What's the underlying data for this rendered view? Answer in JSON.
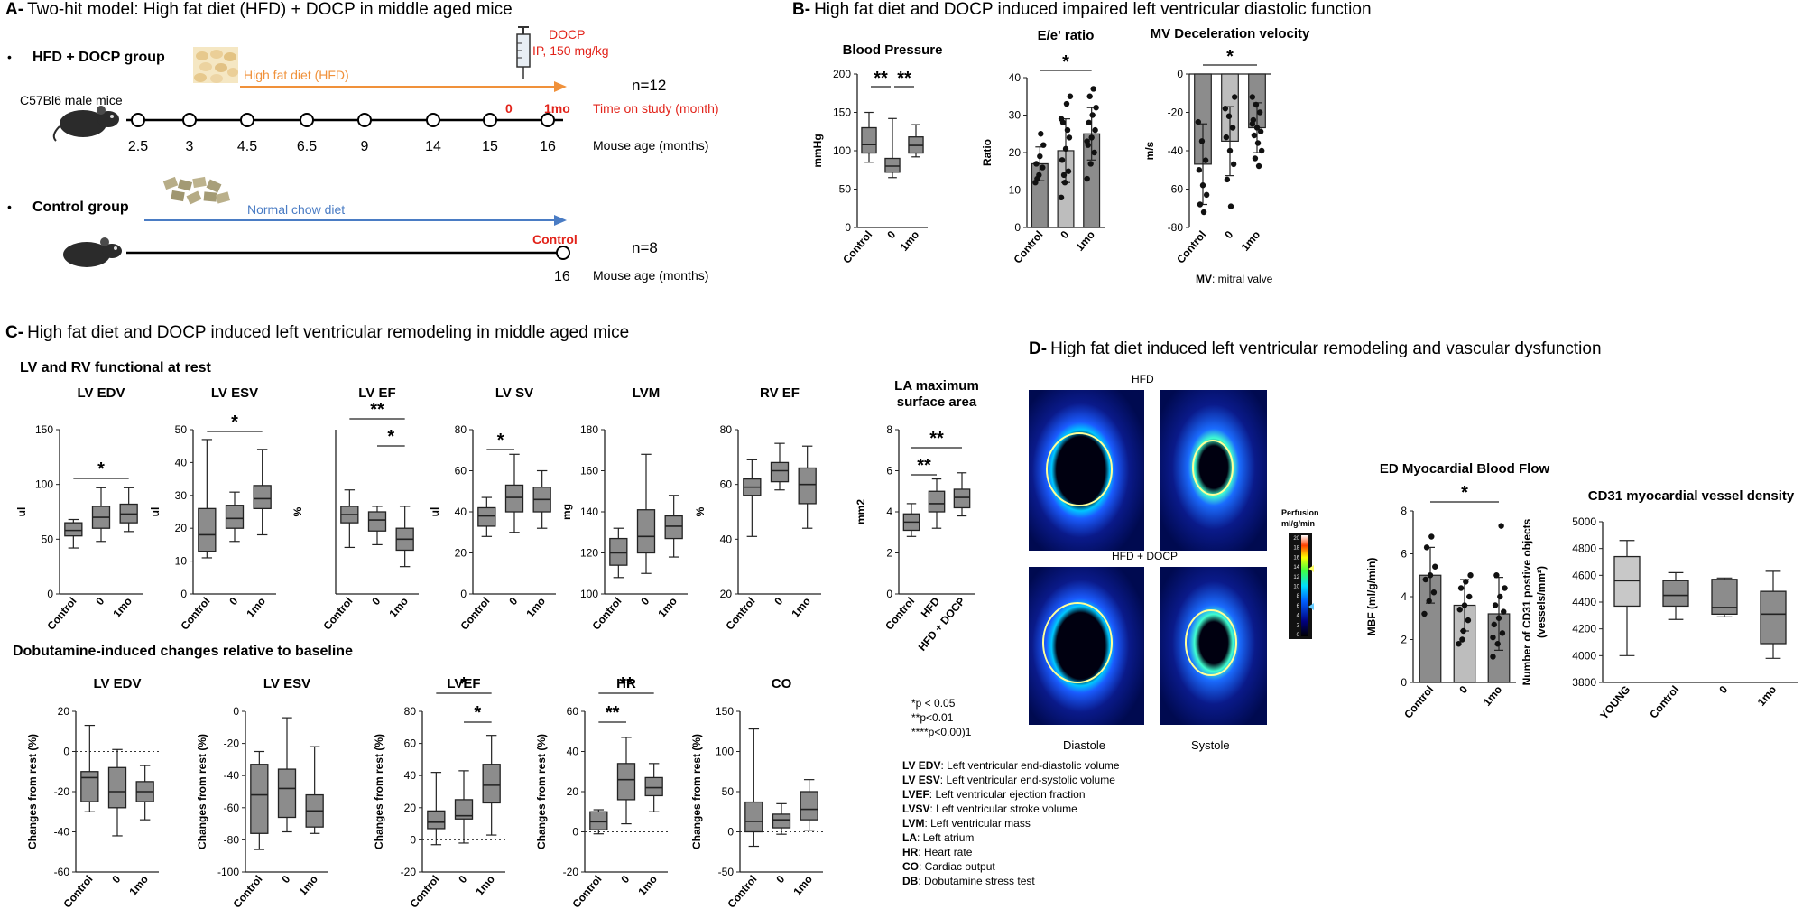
{
  "panel_a": {
    "title_letter": "A-",
    "title": "Two-hit model: High fat diet (HFD) + DOCP in middle aged mice",
    "hfd_group": {
      "bullet": "•",
      "label": "HFD + DOCP group",
      "mouse_label": "C57Bl6 male mice",
      "diet_label": "High fat diet (HFD)",
      "docp_label": "DOCP",
      "docp_dose": "IP, 150 mg/kg",
      "ages": [
        "2.5",
        "3",
        "4.5",
        "6.5",
        "9",
        "14",
        "15",
        "16"
      ],
      "study_marks": [
        "0",
        "1mo"
      ],
      "n_label": "n=12",
      "time_label": "Time on study (month)",
      "age_label": "Mouse age (months)",
      "diet_color": "#f0913a",
      "red": "#e2231a"
    },
    "control_group": {
      "bullet": "•",
      "label": "Control group",
      "diet_label": "Normal chow diet",
      "control_mark": "Control",
      "age": "16",
      "n_label": "n=8",
      "age_label": "Mouse age (months)",
      "diet_color": "#4a7cc4"
    }
  },
  "panel_b": {
    "title_letter": "B-",
    "title": "High fat diet and DOCP induced impaired left ventricular diastolic function",
    "footnote_bold": "MV",
    "footnote_rest": ": mitral valve",
    "categories": [
      "Control",
      "0",
      "1mo"
    ],
    "charts": [
      {
        "title": "Blood Pressure",
        "ylabel": "mmHg",
        "type": "box",
        "ylim": [
          0,
          200
        ],
        "yticks": [
          "0",
          "50",
          "100",
          "150",
          "200"
        ],
        "boxes": [
          {
            "min": 85,
            "q1": 97,
            "median": 108,
            "q3": 130,
            "max": 150
          },
          {
            "min": 65,
            "q1": 72,
            "median": 80,
            "q3": 90,
            "max": 142
          },
          {
            "min": 92,
            "q1": 97,
            "median": 107,
            "q3": 118,
            "max": 134
          }
        ],
        "sig": [
          {
            "from": 0,
            "to": 1,
            "label": "**"
          },
          {
            "from": 1,
            "to": 2,
            "label": "**"
          }
        ]
      },
      {
        "title": "E/e' ratio",
        "ylabel": "Ratio",
        "type": "bar",
        "ylim": [
          0,
          40
        ],
        "yticks": [
          "0",
          "10",
          "20",
          "30",
          "40"
        ],
        "bars": [
          {
            "mean": 17,
            "sd": 4.5,
            "points": [
              12,
              14,
              16,
              17,
              19,
              22,
              13,
              25
            ]
          },
          {
            "mean": 20.5,
            "sd": 8.5,
            "points": [
              8,
              12,
              15,
              18,
              21,
              24,
              28,
              33,
              35,
              14,
              26,
              29
            ]
          },
          {
            "mean": 25,
            "sd": 7,
            "points": [
              13,
              17,
              20,
              22,
              24,
              26,
              28,
              30,
              32,
              35,
              37,
              23
            ]
          }
        ],
        "sig": [
          {
            "from": 0,
            "to": 2,
            "label": "*"
          }
        ]
      },
      {
        "title": "MV Deceleration velocity",
        "ylabel": "m/s",
        "type": "bar",
        "ylim": [
          -80,
          0
        ],
        "yticks": [
          "-80",
          "-60",
          "-40",
          "-20",
          "0"
        ],
        "bars": [
          {
            "mean": -47,
            "sd": 21,
            "points": [
              -25,
              -35,
              -45,
              -50,
              -58,
              -63,
              -68,
              -72
            ]
          },
          {
            "mean": -35,
            "sd": 18,
            "points": [
              -18,
              -22,
              -28,
              -33,
              -40,
              -47,
              -55,
              -69,
              -12
            ]
          },
          {
            "mean": -28,
            "sd": 13,
            "points": [
              -12,
              -16,
              -20,
              -24,
              -28,
              -30,
              -32,
              -36,
              -40,
              -44,
              -48,
              -26
            ]
          }
        ],
        "sig": [
          {
            "from": 0,
            "to": 2,
            "label": "*"
          }
        ]
      }
    ]
  },
  "panel_c": {
    "title_letter": "C-",
    "title": "High fat diet and DOCP induced left ventricular remodeling in middle aged mice",
    "rest_title": "LV and RV functional at rest",
    "dob_title": "Dobutamine-induced changes relative to baseline",
    "categories": [
      "Control",
      "0",
      "1mo"
    ],
    "rest_charts": [
      {
        "title": "LV EDV",
        "ylabel": "ul",
        "ylim": [
          0,
          150
        ],
        "yticks": [
          "0",
          "50",
          "100",
          "150"
        ],
        "boxes": [
          {
            "min": 42,
            "q1": 53,
            "median": 58,
            "q3": 65,
            "max": 68
          },
          {
            "min": 48,
            "q1": 60,
            "median": 70,
            "q3": 80,
            "max": 97
          },
          {
            "min": 57,
            "q1": 65,
            "median": 73,
            "q3": 82,
            "max": 97
          }
        ],
        "sig": [
          {
            "from": 0,
            "to": 2,
            "label": "*"
          }
        ]
      },
      {
        "title": "LV ESV",
        "ylabel": "ul",
        "ylim": [
          0,
          50
        ],
        "yticks": [
          "0",
          "10",
          "20",
          "30",
          "40",
          "50"
        ],
        "boxes": [
          {
            "min": 11,
            "q1": 13,
            "median": 18,
            "q3": 26,
            "max": 47
          },
          {
            "min": 16,
            "q1": 20,
            "median": 23,
            "q3": 27,
            "max": 31
          },
          {
            "min": 18,
            "q1": 26,
            "median": 29,
            "q3": 33,
            "max": 44
          }
        ],
        "sig": [
          {
            "from": 0,
            "to": 2,
            "label": "*"
          }
        ]
      },
      {
        "title": "LV EF",
        "ylabel": "%",
        "ylim": [
          40,
          100
        ],
        "yticks": [],
        "boxes": [
          {
            "min": 57,
            "q1": 66,
            "median": 69,
            "q3": 72,
            "max": 78
          },
          {
            "min": 58,
            "q1": 63,
            "median": 67,
            "q3": 70,
            "max": 72
          },
          {
            "min": 50,
            "q1": 56,
            "median": 60,
            "q3": 64,
            "max": 72
          }
        ],
        "sig": [
          {
            "from": 0,
            "to": 2,
            "label": "**"
          },
          {
            "from": 1,
            "to": 2,
            "label": "*"
          }
        ]
      },
      {
        "title": "LV SV",
        "ylabel": "ul",
        "ylim": [
          0,
          80
        ],
        "yticks": [
          "0",
          "20",
          "40",
          "60",
          "80"
        ],
        "boxes": [
          {
            "min": 28,
            "q1": 33,
            "median": 38,
            "q3": 42,
            "max": 47
          },
          {
            "min": 30,
            "q1": 40,
            "median": 47,
            "q3": 53,
            "max": 68
          },
          {
            "min": 32,
            "q1": 40,
            "median": 46,
            "q3": 52,
            "max": 60
          }
        ],
        "sig": [
          {
            "from": 0,
            "to": 1,
            "label": "*"
          }
        ]
      },
      {
        "title": "LVM",
        "ylabel": "mg",
        "ylim": [
          100,
          180
        ],
        "yticks": [
          "100",
          "120",
          "140",
          "160",
          "180"
        ],
        "boxes": [
          {
            "min": 108,
            "q1": 114,
            "median": 120,
            "q3": 127,
            "max": 132
          },
          {
            "min": 110,
            "q1": 120,
            "median": 128,
            "q3": 141,
            "max": 168
          },
          {
            "min": 118,
            "q1": 127,
            "median": 133,
            "q3": 138,
            "max": 148
          }
        ],
        "sig": []
      },
      {
        "title": "RV EF",
        "ylabel": "%",
        "ylim": [
          20,
          80
        ],
        "yticks": [
          "20",
          "40",
          "60",
          "80"
        ],
        "boxes": [
          {
            "min": 41,
            "q1": 56,
            "median": 59,
            "q3": 62,
            "max": 69
          },
          {
            "min": 58,
            "q1": 61,
            "median": 65,
            "q3": 68,
            "max": 75
          },
          {
            "min": 44,
            "q1": 53,
            "median": 60,
            "q3": 66,
            "max": 74
          }
        ],
        "sig": []
      },
      {
        "title_line1": "LA maximum",
        "title_line2": "surface area",
        "ylabel": "mm2",
        "ylim": [
          0,
          8
        ],
        "yticks": [
          "0",
          "2",
          "4",
          "6",
          "8"
        ],
        "categories": [
          "Control",
          "HFD",
          "HFD + DOCP"
        ],
        "boxes": [
          {
            "min": 2.8,
            "q1": 3.1,
            "median": 3.5,
            "q3": 3.9,
            "max": 4.4
          },
          {
            "min": 3.2,
            "q1": 4.0,
            "median": 4.4,
            "q3": 5.0,
            "max": 5.6
          },
          {
            "min": 3.8,
            "q1": 4.2,
            "median": 4.7,
            "q3": 5.1,
            "max": 5.9
          }
        ],
        "sig": [
          {
            "from": 0,
            "to": 1,
            "label": "**"
          },
          {
            "from": 0,
            "to": 2,
            "label": "**"
          }
        ]
      }
    ],
    "dob_ylabel": "Changes from rest (%)",
    "dob_charts": [
      {
        "title": "LV EDV",
        "ylim": [
          -60,
          20
        ],
        "yticks": [
          "-60",
          "-40",
          "-20",
          "0",
          "20"
        ],
        "boxes": [
          {
            "min": -30,
            "q1": -25,
            "median": -13,
            "q3": -10,
            "max": 13
          },
          {
            "min": -42,
            "q1": -28,
            "median": -20,
            "q3": -8,
            "max": 1
          },
          {
            "min": -34,
            "q1": -25,
            "median": -20,
            "q3": -15,
            "max": -7
          }
        ],
        "sig": []
      },
      {
        "title": "LV ESV",
        "ylim": [
          -100,
          0
        ],
        "yticks": [
          "-100",
          "-80",
          "-60",
          "-40",
          "-20",
          "0"
        ],
        "boxes": [
          {
            "min": -86,
            "q1": -76,
            "median": -52,
            "q3": -33,
            "max": -25
          },
          {
            "min": -75,
            "q1": -66,
            "median": -48,
            "q3": -36,
            "max": -4
          },
          {
            "min": -76,
            "q1": -72,
            "median": -62,
            "q3": -52,
            "max": -22
          }
        ],
        "sig": []
      },
      {
        "title": "LVEF",
        "ylim": [
          -20,
          80
        ],
        "yticks": [
          "-20",
          "0",
          "20",
          "40",
          "60",
          "80"
        ],
        "boxes": [
          {
            "min": -3,
            "q1": 7,
            "median": 11,
            "q3": 18,
            "max": 42
          },
          {
            "min": -2,
            "q1": 13,
            "median": 15,
            "q3": 25,
            "max": 43
          },
          {
            "min": 3,
            "q1": 23,
            "median": 34,
            "q3": 47,
            "max": 65
          }
        ],
        "sig": [
          {
            "from": 0,
            "to": 2,
            "label": "*"
          },
          {
            "from": 1,
            "to": 2,
            "label": "*"
          }
        ]
      },
      {
        "title": "HR",
        "ylim": [
          -20,
          60
        ],
        "yticks": [
          "-20",
          "0",
          "20",
          "40",
          "60"
        ],
        "boxes": [
          {
            "min": -1,
            "q1": 1,
            "median": 5,
            "q3": 10,
            "max": 11
          },
          {
            "min": 4,
            "q1": 16,
            "median": 26,
            "q3": 34,
            "max": 47
          },
          {
            "min": 10,
            "q1": 18,
            "median": 22,
            "q3": 27,
            "max": 34
          }
        ],
        "sig": [
          {
            "from": 0,
            "to": 1,
            "label": "**"
          },
          {
            "from": 0,
            "to": 2,
            "label": "**"
          }
        ]
      },
      {
        "title": "CO",
        "ylim": [
          -50,
          150
        ],
        "yticks": [
          "-50",
          "0",
          "50",
          "100",
          "150"
        ],
        "boxes": [
          {
            "min": -18,
            "q1": 0,
            "median": 13,
            "q3": 37,
            "max": 128
          },
          {
            "min": -3,
            "q1": 5,
            "median": 15,
            "q3": 22,
            "max": 35
          },
          {
            "min": 2,
            "q1": 15,
            "median": 28,
            "q3": 50,
            "max": 65
          }
        ],
        "sig": []
      }
    ],
    "pvalues": [
      "*p < 0.05",
      "**p<0.01",
      "****p<0.00)1"
    ],
    "abbreviations": [
      {
        "abbr": "LV EDV",
        "desc": ": Left ventricular end-diastolic volume"
      },
      {
        "abbr": "LV ESV",
        "desc": ": Left ventricular end-systolic volume"
      },
      {
        "abbr": "LVEF",
        "desc": ": Left ventricular ejection fraction"
      },
      {
        "abbr": "LVSV",
        "desc": ": Left ventricular stroke volume"
      },
      {
        "abbr": "LVM",
        "desc": ": Left ventricular mass"
      },
      {
        "abbr": "LA",
        "desc": ": Left atrium"
      },
      {
        "abbr": "HR",
        "desc": ": Heart rate"
      },
      {
        "abbr": "CO",
        "desc": ": Cardiac output"
      },
      {
        "abbr": "DB",
        "desc": ": Dobutamine stress test"
      }
    ]
  },
  "panel_d": {
    "title_letter": "D-",
    "title": "High fat diet induced left ventricular remodeling and vascular dysfunction",
    "img_hfd_label": "HFD",
    "img_hfd_docp_label": "HFD + DOCP",
    "diastole_label": "Diastole",
    "systole_label": "Systole",
    "perfusion_label_1": "Perfusion",
    "perfusion_label_2": "ml/g/min",
    "colorbar_ticks": [
      "20",
      "18",
      "16",
      "14",
      "12",
      "10",
      "8",
      "6",
      "4",
      "2",
      "0"
    ],
    "mbf_chart": {
      "title": "ED Myocardial Blood Flow",
      "ylabel": "MBF (ml/g/min)",
      "ylim": [
        0,
        8
      ],
      "yticks": [
        "0",
        "2",
        "4",
        "6",
        "8"
      ],
      "categories": [
        "Control",
        "0",
        "1mo"
      ],
      "bars": [
        {
          "mean": 5.0,
          "sd": 1.3,
          "points": [
            3.2,
            3.8,
            4.2,
            4.8,
            5.0,
            5.4,
            6.3,
            6.8
          ]
        },
        {
          "mean": 3.6,
          "sd": 1.2,
          "points": [
            1.8,
            2.4,
            2.9,
            3.4,
            3.6,
            4.0,
            4.4,
            4.7,
            5.0,
            2.0
          ]
        },
        {
          "mean": 3.2,
          "sd": 1.7,
          "points": [
            1.2,
            1.8,
            2.3,
            2.7,
            3.0,
            3.3,
            3.6,
            4.0,
            4.4,
            5.0,
            7.3,
            2.1
          ]
        }
      ],
      "sig": [
        {
          "from": 0,
          "to": 2,
          "label": "*"
        }
      ]
    },
    "cd31_chart": {
      "title": "CD31 myocardial vessel density",
      "ylabel_line1": "Number of CD31 postive objects",
      "ylabel_line2": "(vessels/mm²)",
      "ylim": [
        3800,
        5000
      ],
      "yticks": [
        "3800",
        "4000",
        "4200",
        "4400",
        "4600",
        "4800",
        "5000"
      ],
      "categories": [
        "YOUNG",
        "Control",
        "0",
        "1mo"
      ],
      "boxes": [
        {
          "min": 4000,
          "q1": 4370,
          "median": 4560,
          "q3": 4740,
          "max": 4860,
          "fill": "#c8c8c8"
        },
        {
          "min": 4270,
          "q1": 4370,
          "median": 4450,
          "q3": 4560,
          "max": 4620,
          "fill": "#8c8c8c"
        },
        {
          "min": 4290,
          "q1": 4310,
          "median": 4360,
          "q3": 4570,
          "max": 4580,
          "fill": "#8c8c8c"
        },
        {
          "min": 3980,
          "q1": 4090,
          "median": 4310,
          "q3": 4480,
          "max": 4630,
          "fill": "#8c8c8c"
        }
      ],
      "sig": []
    }
  },
  "colors": {
    "box_fill": "#8c8c8c",
    "box_fill_light": "#bdbdbd",
    "stroke": "#222222"
  }
}
